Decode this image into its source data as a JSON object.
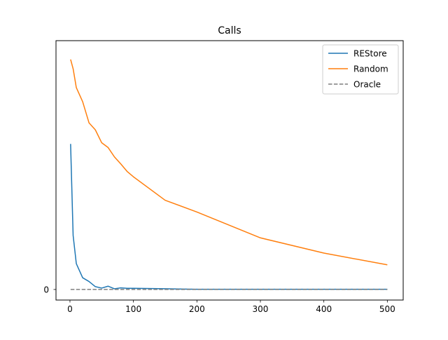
{
  "chart_data": {
    "type": "line",
    "title": "Calls",
    "xlabel": "",
    "ylabel": "",
    "xlim": [
      -22,
      525
    ],
    "ylim": [
      -4.5,
      106
    ],
    "xticks": [
      0,
      100,
      200,
      300,
      400,
      500
    ],
    "yticks": [
      0
    ],
    "grid": false,
    "legend_position": "top-right",
    "series": [
      {
        "name": "REStore",
        "color": "#1f77b4",
        "dash": "solid",
        "x": [
          1,
          5,
          10,
          20,
          30,
          40,
          50,
          60,
          70,
          80,
          90,
          100,
          150,
          200,
          300,
          400,
          500
        ],
        "y": [
          62,
          23,
          11,
          5,
          3.4,
          1.2,
          0.6,
          1.4,
          0.3,
          0.7,
          0.5,
          0.5,
          0.3,
          0.1,
          0.1,
          0.1,
          0.1
        ]
      },
      {
        "name": "Random",
        "color": "#ff7f0e",
        "dash": "solid",
        "x": [
          1,
          5,
          10,
          20,
          30,
          40,
          50,
          60,
          70,
          80,
          90,
          100,
          150,
          200,
          300,
          400,
          500
        ],
        "y": [
          98,
          94,
          86,
          80,
          71,
          68,
          62.5,
          60.5,
          56.5,
          53.5,
          50.3,
          48,
          38,
          33,
          22,
          15.5,
          10.5
        ]
      },
      {
        "name": "Oracle",
        "color": "#7f7f7f",
        "dash": "dashed",
        "x": [
          1,
          500
        ],
        "y": [
          0,
          0
        ]
      }
    ]
  }
}
